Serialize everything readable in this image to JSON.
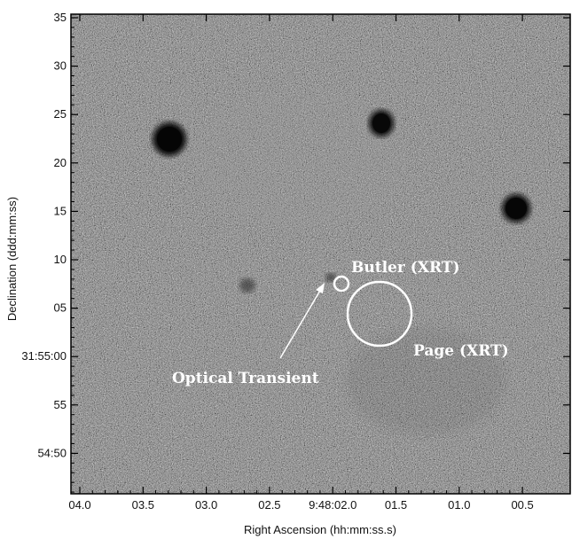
{
  "figure": {
    "x_axis_title": "Right Ascension (hh:mm:ss.s)",
    "y_axis_title": "Declination (ddd:mm:ss)",
    "x_ticks": [
      "04.0",
      "03.5",
      "03.0",
      "02.5",
      "9:48:02.0",
      "01.5",
      "01.0",
      "00.5"
    ],
    "y_ticks": [
      "35",
      "30",
      "25",
      "20",
      "15",
      "10",
      "05",
      "31:55:00",
      "55",
      "54:50"
    ]
  },
  "annotations": {
    "butler": "Butler (XRT)",
    "page": "Page (XRT)",
    "optical_transient": "Optical Transient"
  },
  "colors": {
    "annotation": "#ffffff",
    "sources": "#0a0a0a",
    "background_noise_mean": "#7a7a7a"
  }
}
